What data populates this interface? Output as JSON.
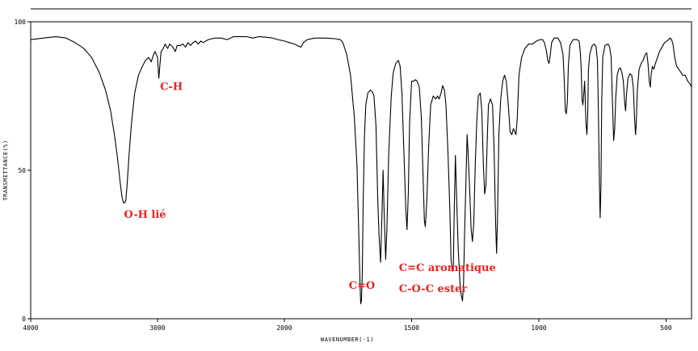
{
  "chart_data": {
    "type": "line",
    "title": "",
    "xlabel": "WAVENUMBER(-1)",
    "ylabel": "TRANSMITTANCE(%)",
    "xlim": [
      4000,
      400
    ],
    "ylim": [
      0,
      100
    ],
    "x_reversed": true,
    "grid": false,
    "x_ticks": [
      {
        "value": 4000,
        "label": "4000"
      },
      {
        "value": 3000,
        "label": "3000"
      },
      {
        "value": 2000,
        "label": "2000"
      },
      {
        "value": 1500,
        "label": "1500"
      },
      {
        "value": 1000,
        "label": "1000"
      },
      {
        "value": 500,
        "label": "500"
      }
    ],
    "y_ticks": [
      {
        "value": 100,
        "label": "100"
      },
      {
        "value": 50,
        "label": "50"
      },
      {
        "value": 0,
        "label": "0"
      }
    ],
    "line_color": "#000000",
    "annotation_color": "#e8231f",
    "series": [
      {
        "points": [
          [
            4000,
            94
          ],
          [
            3900,
            94.5
          ],
          [
            3800,
            95
          ],
          [
            3720,
            94.5
          ],
          [
            3650,
            93
          ],
          [
            3580,
            91
          ],
          [
            3520,
            88
          ],
          [
            3460,
            83
          ],
          [
            3410,
            77
          ],
          [
            3370,
            70
          ],
          [
            3340,
            62
          ],
          [
            3315,
            54
          ],
          [
            3295,
            46
          ],
          [
            3280,
            41
          ],
          [
            3268,
            39
          ],
          [
            3258,
            39
          ],
          [
            3250,
            40
          ],
          [
            3240,
            45
          ],
          [
            3225,
            55
          ],
          [
            3205,
            66
          ],
          [
            3180,
            76
          ],
          [
            3150,
            82
          ],
          [
            3120,
            85
          ],
          [
            3095,
            87
          ],
          [
            3070,
            88
          ],
          [
            3050,
            86.5
          ],
          [
            3035,
            88.5
          ],
          [
            3020,
            90
          ],
          [
            3000,
            88
          ],
          [
            2990,
            81
          ],
          [
            2982,
            85
          ],
          [
            2972,
            90
          ],
          [
            2955,
            91
          ],
          [
            2940,
            92.5
          ],
          [
            2920,
            91
          ],
          [
            2905,
            92.5
          ],
          [
            2880,
            91.5
          ],
          [
            2860,
            90
          ],
          [
            2845,
            92
          ],
          [
            2820,
            92
          ],
          [
            2800,
            92.5
          ],
          [
            2780,
            91.5
          ],
          [
            2760,
            93
          ],
          [
            2740,
            92
          ],
          [
            2720,
            93
          ],
          [
            2700,
            93.5
          ],
          [
            2680,
            92.5
          ],
          [
            2660,
            93.5
          ],
          [
            2640,
            93
          ],
          [
            2600,
            94
          ],
          [
            2550,
            94.5
          ],
          [
            2500,
            94.5
          ],
          [
            2450,
            94
          ],
          [
            2400,
            95
          ],
          [
            2350,
            95
          ],
          [
            2300,
            95
          ],
          [
            2250,
            94.5
          ],
          [
            2200,
            95
          ],
          [
            2150,
            94.8
          ],
          [
            2100,
            94.6
          ],
          [
            2050,
            94
          ],
          [
            2000,
            93.5
          ],
          [
            1980,
            93
          ],
          [
            1960,
            92.5
          ],
          [
            1945,
            91.8
          ],
          [
            1935,
            91.5
          ],
          [
            1925,
            93
          ],
          [
            1910,
            94
          ],
          [
            1880,
            94.5
          ],
          [
            1840,
            94.5
          ],
          [
            1800,
            94.3
          ],
          [
            1780,
            94
          ],
          [
            1770,
            93
          ],
          [
            1755,
            89
          ],
          [
            1740,
            82
          ],
          [
            1725,
            68
          ],
          [
            1715,
            52
          ],
          [
            1708,
            30
          ],
          [
            1703,
            12
          ],
          [
            1700,
            5
          ],
          [
            1697,
            6
          ],
          [
            1694,
            15
          ],
          [
            1690,
            40
          ],
          [
            1685,
            62
          ],
          [
            1680,
            72
          ],
          [
            1672,
            76
          ],
          [
            1662,
            77
          ],
          [
            1655,
            76.5
          ],
          [
            1648,
            75
          ],
          [
            1640,
            65
          ],
          [
            1633,
            40
          ],
          [
            1628,
            28
          ],
          [
            1622,
            19
          ],
          [
            1618,
            30
          ],
          [
            1612,
            50
          ],
          [
            1608,
            36
          ],
          [
            1602,
            20
          ],
          [
            1597,
            30
          ],
          [
            1590,
            55
          ],
          [
            1580,
            75
          ],
          [
            1572,
            83
          ],
          [
            1562,
            86
          ],
          [
            1552,
            87
          ],
          [
            1545,
            85
          ],
          [
            1538,
            76
          ],
          [
            1530,
            55
          ],
          [
            1523,
            37
          ],
          [
            1518,
            30
          ],
          [
            1513,
            42
          ],
          [
            1508,
            66
          ],
          [
            1500,
            80
          ],
          [
            1492,
            80
          ],
          [
            1485,
            80.5
          ],
          [
            1478,
            80
          ],
          [
            1470,
            78
          ],
          [
            1462,
            68
          ],
          [
            1455,
            48
          ],
          [
            1450,
            33
          ],
          [
            1446,
            31
          ],
          [
            1440,
            40
          ],
          [
            1433,
            58
          ],
          [
            1425,
            72
          ],
          [
            1415,
            75
          ],
          [
            1405,
            74
          ],
          [
            1398,
            75
          ],
          [
            1392,
            74
          ],
          [
            1384,
            76
          ],
          [
            1378,
            78.5
          ],
          [
            1371,
            77
          ],
          [
            1365,
            72
          ],
          [
            1357,
            56
          ],
          [
            1350,
            37
          ],
          [
            1345,
            20
          ],
          [
            1340,
            16
          ],
          [
            1336,
            18
          ],
          [
            1333,
            34
          ],
          [
            1328,
            55
          ],
          [
            1323,
            40
          ],
          [
            1317,
            24
          ],
          [
            1310,
            12
          ],
          [
            1305,
            8
          ],
          [
            1300,
            6
          ],
          [
            1296,
            12
          ],
          [
            1292,
            28
          ],
          [
            1286,
            48
          ],
          [
            1282,
            62
          ],
          [
            1278,
            56
          ],
          [
            1272,
            44
          ],
          [
            1266,
            30
          ],
          [
            1261,
            26
          ],
          [
            1256,
            32
          ],
          [
            1250,
            52
          ],
          [
            1244,
            66
          ],
          [
            1238,
            75
          ],
          [
            1230,
            76
          ],
          [
            1224,
            70
          ],
          [
            1218,
            52
          ],
          [
            1213,
            42
          ],
          [
            1208,
            45
          ],
          [
            1203,
            60
          ],
          [
            1198,
            72
          ],
          [
            1190,
            74
          ],
          [
            1182,
            72
          ],
          [
            1176,
            57
          ],
          [
            1170,
            32
          ],
          [
            1166,
            22
          ],
          [
            1162,
            36
          ],
          [
            1157,
            62
          ],
          [
            1150,
            74
          ],
          [
            1142,
            80
          ],
          [
            1135,
            82
          ],
          [
            1128,
            80
          ],
          [
            1120,
            72
          ],
          [
            1113,
            63
          ],
          [
            1106,
            62
          ],
          [
            1100,
            64
          ],
          [
            1094,
            63
          ],
          [
            1090,
            62
          ],
          [
            1085,
            67
          ],
          [
            1078,
            82
          ],
          [
            1068,
            88
          ],
          [
            1055,
            91
          ],
          [
            1040,
            92.5
          ],
          [
            1025,
            92.5
          ],
          [
            1010,
            93.5
          ],
          [
            995,
            94
          ],
          [
            985,
            94
          ],
          [
            978,
            93
          ],
          [
            970,
            90
          ],
          [
            965,
            87
          ],
          [
            960,
            86
          ],
          [
            955,
            89
          ],
          [
            950,
            93
          ],
          [
            940,
            94.5
          ],
          [
            925,
            94.5
          ],
          [
            915,
            93
          ],
          [
            905,
            89
          ],
          [
            900,
            80
          ],
          [
            896,
            70
          ],
          [
            892,
            69
          ],
          [
            888,
            73
          ],
          [
            884,
            85
          ],
          [
            878,
            92
          ],
          [
            865,
            94
          ],
          [
            850,
            94
          ],
          [
            842,
            93.5
          ],
          [
            837,
            90
          ],
          [
            834,
            85
          ],
          [
            830,
            74
          ],
          [
            827,
            72
          ],
          [
            824,
            75
          ],
          [
            820,
            80
          ],
          [
            815,
            66
          ],
          [
            811,
            62
          ],
          [
            808,
            69
          ],
          [
            805,
            84
          ],
          [
            800,
            89
          ],
          [
            790,
            92
          ],
          [
            782,
            92.5
          ],
          [
            775,
            91.5
          ],
          [
            770,
            87
          ],
          [
            766,
            70
          ],
          [
            762,
            45
          ],
          [
            759,
            34
          ],
          [
            756,
            45
          ],
          [
            753,
            73
          ],
          [
            749,
            88
          ],
          [
            740,
            92
          ],
          [
            728,
            92.5
          ],
          [
            722,
            91.5
          ],
          [
            716,
            88
          ],
          [
            711,
            74
          ],
          [
            706,
            60
          ],
          [
            702,
            64
          ],
          [
            698,
            74
          ],
          [
            692,
            82
          ],
          [
            686,
            84
          ],
          [
            680,
            84.5
          ],
          [
            674,
            83
          ],
          [
            668,
            80
          ],
          [
            663,
            73
          ],
          [
            659,
            70
          ],
          [
            656,
            75
          ],
          [
            650,
            81
          ],
          [
            642,
            82.5
          ],
          [
            635,
            82
          ],
          [
            629,
            78
          ],
          [
            624,
            68
          ],
          [
            620,
            62
          ],
          [
            617,
            66
          ],
          [
            613,
            77
          ],
          [
            606,
            84
          ],
          [
            598,
            86
          ],
          [
            590,
            87
          ],
          [
            582,
            89
          ],
          [
            576,
            89.5
          ],
          [
            571,
            86
          ],
          [
            566,
            80
          ],
          [
            562,
            78
          ],
          [
            559,
            82
          ],
          [
            554,
            85
          ],
          [
            548,
            84
          ],
          [
            542,
            86
          ],
          [
            534,
            88
          ],
          [
            526,
            90
          ],
          [
            516,
            91.5
          ],
          [
            506,
            93
          ],
          [
            497,
            93.5
          ],
          [
            490,
            94
          ],
          [
            484,
            94.5
          ],
          [
            478,
            94
          ],
          [
            472,
            92
          ],
          [
            466,
            88
          ],
          [
            458,
            85
          ],
          [
            450,
            84
          ],
          [
            442,
            83
          ],
          [
            435,
            82
          ],
          [
            425,
            82
          ],
          [
            415,
            80
          ],
          [
            405,
            79
          ],
          [
            400,
            78
          ]
        ]
      }
    ],
    "annotations": [
      {
        "text": "C-H",
        "x": 2980,
        "y": 77
      },
      {
        "text": "O-H lié",
        "x": 3265,
        "y": 34
      },
      {
        "text": "C=O",
        "x": 1747,
        "y": 10
      },
      {
        "text": "C=C aromatique",
        "x": 1550,
        "y": 16
      },
      {
        "text": "C-O-C ester",
        "x": 1550,
        "y": 9
      }
    ]
  }
}
